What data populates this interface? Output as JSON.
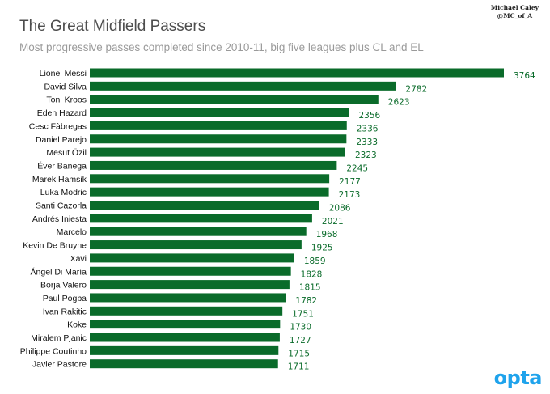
{
  "credit": {
    "author": "Michael Caley",
    "handle": "@MC_of_A"
  },
  "logo": {
    "text": "opta"
  },
  "colors": {
    "bar": "#0a6b2a",
    "value_text": "#0a6b2a",
    "label_text": "#111111"
  },
  "chart_data": {
    "type": "bar",
    "orientation": "horizontal",
    "title": "The Great Midfield Passers",
    "subtitle": "Most progressive passes completed since 2010-11, big five leagues plus CL and EL",
    "xlabel": "",
    "ylabel": "",
    "xlim": [
      0,
      3764
    ],
    "grid": false,
    "categories": [
      "Lionel Messi",
      "David Silva",
      "Toni Kroos",
      "Eden Hazard",
      "Cesc Fàbregas",
      "Daniel Parejo",
      "Mesut Özil",
      "Éver Banega",
      "Marek Hamsik",
      "Luka Modric",
      "Santi Cazorla",
      "Andrés Iniesta",
      "Marcelo",
      "Kevin De Bruyne",
      "Xavi",
      "Ángel Di María",
      "Borja Valero",
      "Paul Pogba",
      "Ivan Rakitic",
      "Koke",
      "Miralem Pjanic",
      "Philippe Coutinho",
      "Javier Pastore"
    ],
    "values": [
      3764,
      2782,
      2623,
      2356,
      2336,
      2333,
      2323,
      2245,
      2177,
      2173,
      2086,
      2021,
      1968,
      1925,
      1859,
      1828,
      1815,
      1782,
      1751,
      1730,
      1727,
      1715,
      1711
    ]
  }
}
